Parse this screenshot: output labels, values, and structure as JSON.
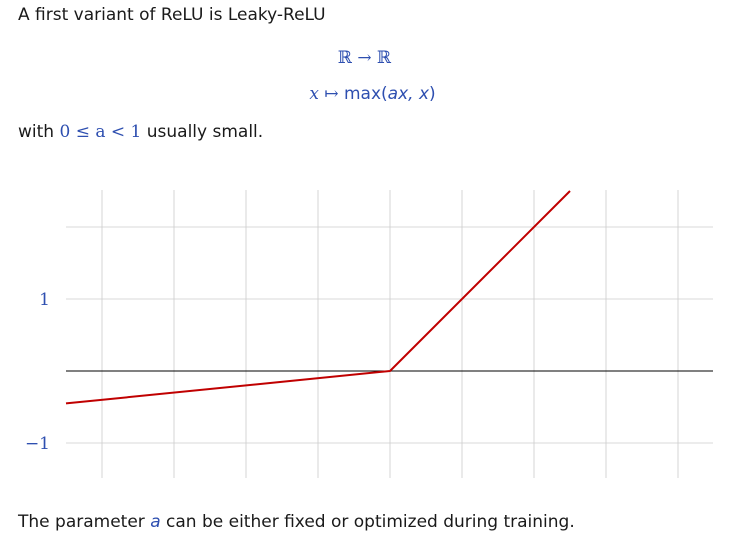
{
  "intro_text": "A first variant of ReLU is Leaky-ReLU",
  "formula": {
    "line1": "ℝ → ℝ",
    "line2_prefix": "x ↦ ",
    "line2_func": "max",
    "line2_args_open": "(",
    "line2_args": "ax, x",
    "line2_args_close": ")"
  },
  "with_line": {
    "prefix": "with ",
    "math": "0 ≤ a < 1",
    "suffix": " usually small."
  },
  "footer": {
    "prefix": "The parameter ",
    "var": "a",
    "suffix": " can be either fixed or optimized during training."
  },
  "colors": {
    "math": "#2e4fb0",
    "curve": "#c00000",
    "grid": "#cccccc",
    "axis": "#000000"
  },
  "chart_data": {
    "type": "line",
    "series": [
      {
        "x": [
          -4.5,
          0,
          2.5
        ],
        "y": [
          -0.45,
          0,
          2.5
        ]
      }
    ],
    "xlim": [
      -4.5,
      4.5
    ],
    "ylim": [
      -1.4,
      2.6
    ],
    "x_gridlines": [
      -4,
      -3,
      -2,
      -1,
      0,
      1,
      2,
      3,
      4
    ],
    "y_gridlines": [
      -1,
      0,
      1,
      2
    ],
    "y_tick_labels": [
      {
        "value": 1,
        "label": "1"
      },
      {
        "value": -1,
        "label": "−1"
      }
    ],
    "grid": true
  }
}
